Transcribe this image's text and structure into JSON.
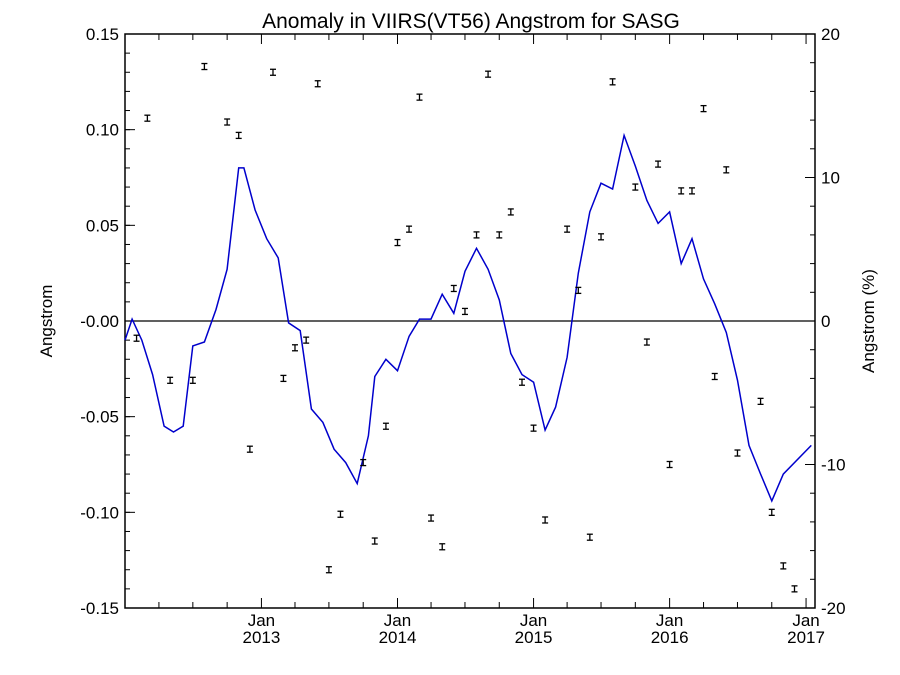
{
  "chart_data": {
    "type": "scatter",
    "title": "Anomaly in VIIRS(VT56) Angstrom for SASG",
    "ylabel_left": "Angstrom",
    "ylabel_right": "Angstrom (%)",
    "ylim_left": [
      -0.15,
      0.15
    ],
    "ylim_right": [
      -20,
      20
    ],
    "xlim": [
      "2012-01-01",
      "2017-01-25"
    ],
    "x_ticks": [
      {
        "date": "2013-01-01",
        "month": "Jan",
        "year": "2013"
      },
      {
        "date": "2014-01-01",
        "month": "Jan",
        "year": "2014"
      },
      {
        "date": "2015-01-01",
        "month": "Jan",
        "year": "2015"
      },
      {
        "date": "2016-01-01",
        "month": "Jan",
        "year": "2016"
      },
      {
        "date": "2017-01-01",
        "month": "Jan",
        "year": "2017"
      }
    ],
    "y_ticks_left": [
      "0.15",
      "0.10",
      "0.05",
      "-0.00",
      "-0.05",
      "-0.10",
      "-0.15"
    ],
    "y_ticks_right": [
      "20",
      "10",
      "0",
      "-10",
      "-20"
    ],
    "zero_line": 0,
    "points": [
      {
        "x": "2012-02-01",
        "y": -0.009
      },
      {
        "x": "2012-03-01",
        "y": 0.106
      },
      {
        "x": "2012-05-01",
        "y": -0.031
      },
      {
        "x": "2012-07-01",
        "y": -0.031
      },
      {
        "x": "2012-08-01",
        "y": 0.133
      },
      {
        "x": "2012-10-01",
        "y": 0.104
      },
      {
        "x": "2012-11-01",
        "y": 0.097
      },
      {
        "x": "2012-12-01",
        "y": -0.067
      },
      {
        "x": "2013-02-01",
        "y": 0.13
      },
      {
        "x": "2013-03-01",
        "y": -0.03
      },
      {
        "x": "2013-04-01",
        "y": -0.014
      },
      {
        "x": "2013-05-01",
        "y": -0.01
      },
      {
        "x": "2013-06-01",
        "y": 0.124
      },
      {
        "x": "2013-07-01",
        "y": -0.13
      },
      {
        "x": "2013-08-01",
        "y": -0.101
      },
      {
        "x": "2013-10-01",
        "y": -0.074
      },
      {
        "x": "2013-11-01",
        "y": -0.115
      },
      {
        "x": "2013-12-01",
        "y": -0.055
      },
      {
        "x": "2014-01-01",
        "y": 0.041
      },
      {
        "x": "2014-02-01",
        "y": 0.048
      },
      {
        "x": "2014-03-01",
        "y": 0.117
      },
      {
        "x": "2014-04-01",
        "y": -0.103
      },
      {
        "x": "2014-05-01",
        "y": -0.118
      },
      {
        "x": "2014-06-01",
        "y": 0.017
      },
      {
        "x": "2014-07-01",
        "y": 0.005
      },
      {
        "x": "2014-08-01",
        "y": 0.045
      },
      {
        "x": "2014-09-01",
        "y": 0.129
      },
      {
        "x": "2014-10-01",
        "y": 0.045
      },
      {
        "x": "2014-11-01",
        "y": 0.057
      },
      {
        "x": "2014-12-01",
        "y": -0.032
      },
      {
        "x": "2015-01-01",
        "y": -0.056
      },
      {
        "x": "2015-02-01",
        "y": -0.104
      },
      {
        "x": "2015-04-01",
        "y": 0.048
      },
      {
        "x": "2015-05-01",
        "y": 0.016
      },
      {
        "x": "2015-06-01",
        "y": -0.113
      },
      {
        "x": "2015-07-01",
        "y": 0.044
      },
      {
        "x": "2015-08-01",
        "y": 0.125
      },
      {
        "x": "2015-10-01",
        "y": 0.07
      },
      {
        "x": "2015-11-01",
        "y": -0.011
      },
      {
        "x": "2015-12-01",
        "y": 0.082
      },
      {
        "x": "2016-01-01",
        "y": -0.075
      },
      {
        "x": "2016-02-01",
        "y": 0.068
      },
      {
        "x": "2016-03-01",
        "y": 0.068
      },
      {
        "x": "2016-04-01",
        "y": 0.111
      },
      {
        "x": "2016-05-01",
        "y": -0.029
      },
      {
        "x": "2016-06-01",
        "y": 0.079
      },
      {
        "x": "2016-07-01",
        "y": -0.069
      },
      {
        "x": "2016-09-01",
        "y": -0.042
      },
      {
        "x": "2016-10-01",
        "y": -0.1
      },
      {
        "x": "2016-11-01",
        "y": -0.128
      },
      {
        "x": "2016-12-01",
        "y": -0.14
      }
    ],
    "line": [
      {
        "x": "2012-01-01",
        "y": -0.01
      },
      {
        "x": "2012-01-20",
        "y": 0.001
      },
      {
        "x": "2012-02-15",
        "y": -0.01
      },
      {
        "x": "2012-03-15",
        "y": -0.028
      },
      {
        "x": "2012-04-15",
        "y": -0.055
      },
      {
        "x": "2012-05-10",
        "y": -0.058
      },
      {
        "x": "2012-06-05",
        "y": -0.055
      },
      {
        "x": "2012-07-01",
        "y": -0.013
      },
      {
        "x": "2012-08-01",
        "y": -0.011
      },
      {
        "x": "2012-09-01",
        "y": 0.006
      },
      {
        "x": "2012-10-01",
        "y": 0.027
      },
      {
        "x": "2012-11-01",
        "y": 0.08
      },
      {
        "x": "2012-11-15",
        "y": 0.08
      },
      {
        "x": "2012-12-15",
        "y": 0.058
      },
      {
        "x": "2013-01-15",
        "y": 0.043
      },
      {
        "x": "2013-02-15",
        "y": 0.033
      },
      {
        "x": "2013-03-15",
        "y": -0.001
      },
      {
        "x": "2013-04-15",
        "y": -0.005
      },
      {
        "x": "2013-05-15",
        "y": -0.046
      },
      {
        "x": "2013-06-15",
        "y": -0.053
      },
      {
        "x": "2013-07-15",
        "y": -0.067
      },
      {
        "x": "2013-08-15",
        "y": -0.074
      },
      {
        "x": "2013-09-15",
        "y": -0.085
      },
      {
        "x": "2013-10-15",
        "y": -0.06
      },
      {
        "x": "2013-11-01",
        "y": -0.029
      },
      {
        "x": "2013-12-01",
        "y": -0.02
      },
      {
        "x": "2014-01-01",
        "y": -0.026
      },
      {
        "x": "2014-02-01",
        "y": -0.008
      },
      {
        "x": "2014-03-01",
        "y": 0.001
      },
      {
        "x": "2014-04-01",
        "y": 0.001
      },
      {
        "x": "2014-05-01",
        "y": 0.014
      },
      {
        "x": "2014-06-01",
        "y": 0.004
      },
      {
        "x": "2014-07-01",
        "y": 0.026
      },
      {
        "x": "2014-08-01",
        "y": 0.038
      },
      {
        "x": "2014-09-01",
        "y": 0.027
      },
      {
        "x": "2014-10-01",
        "y": 0.011
      },
      {
        "x": "2014-11-01",
        "y": -0.017
      },
      {
        "x": "2014-12-01",
        "y": -0.028
      },
      {
        "x": "2015-01-01",
        "y": -0.032
      },
      {
        "x": "2015-02-01",
        "y": -0.057
      },
      {
        "x": "2015-03-01",
        "y": -0.045
      },
      {
        "x": "2015-04-01",
        "y": -0.019
      },
      {
        "x": "2015-05-01",
        "y": 0.025
      },
      {
        "x": "2015-06-01",
        "y": 0.057
      },
      {
        "x": "2015-07-01",
        "y": 0.072
      },
      {
        "x": "2015-08-01",
        "y": 0.069
      },
      {
        "x": "2015-09-01",
        "y": 0.097
      },
      {
        "x": "2015-10-01",
        "y": 0.081
      },
      {
        "x": "2015-11-01",
        "y": 0.063
      },
      {
        "x": "2015-12-01",
        "y": 0.051
      },
      {
        "x": "2016-01-01",
        "y": 0.057
      },
      {
        "x": "2016-02-01",
        "y": 0.03
      },
      {
        "x": "2016-03-01",
        "y": 0.043
      },
      {
        "x": "2016-04-01",
        "y": 0.022
      },
      {
        "x": "2016-05-01",
        "y": 0.009
      },
      {
        "x": "2016-06-01",
        "y": -0.006
      },
      {
        "x": "2016-07-01",
        "y": -0.031
      },
      {
        "x": "2016-08-01",
        "y": -0.065
      },
      {
        "x": "2016-09-01",
        "y": -0.08
      },
      {
        "x": "2016-10-01",
        "y": -0.094
      },
      {
        "x": "2016-11-01",
        "y": -0.08
      },
      {
        "x": "2017-01-15",
        "y": -0.065
      }
    ],
    "colors": {
      "line": "#0000cc",
      "points": "#000000",
      "zero_line": "#000000"
    },
    "grid": false,
    "legend": "none"
  }
}
